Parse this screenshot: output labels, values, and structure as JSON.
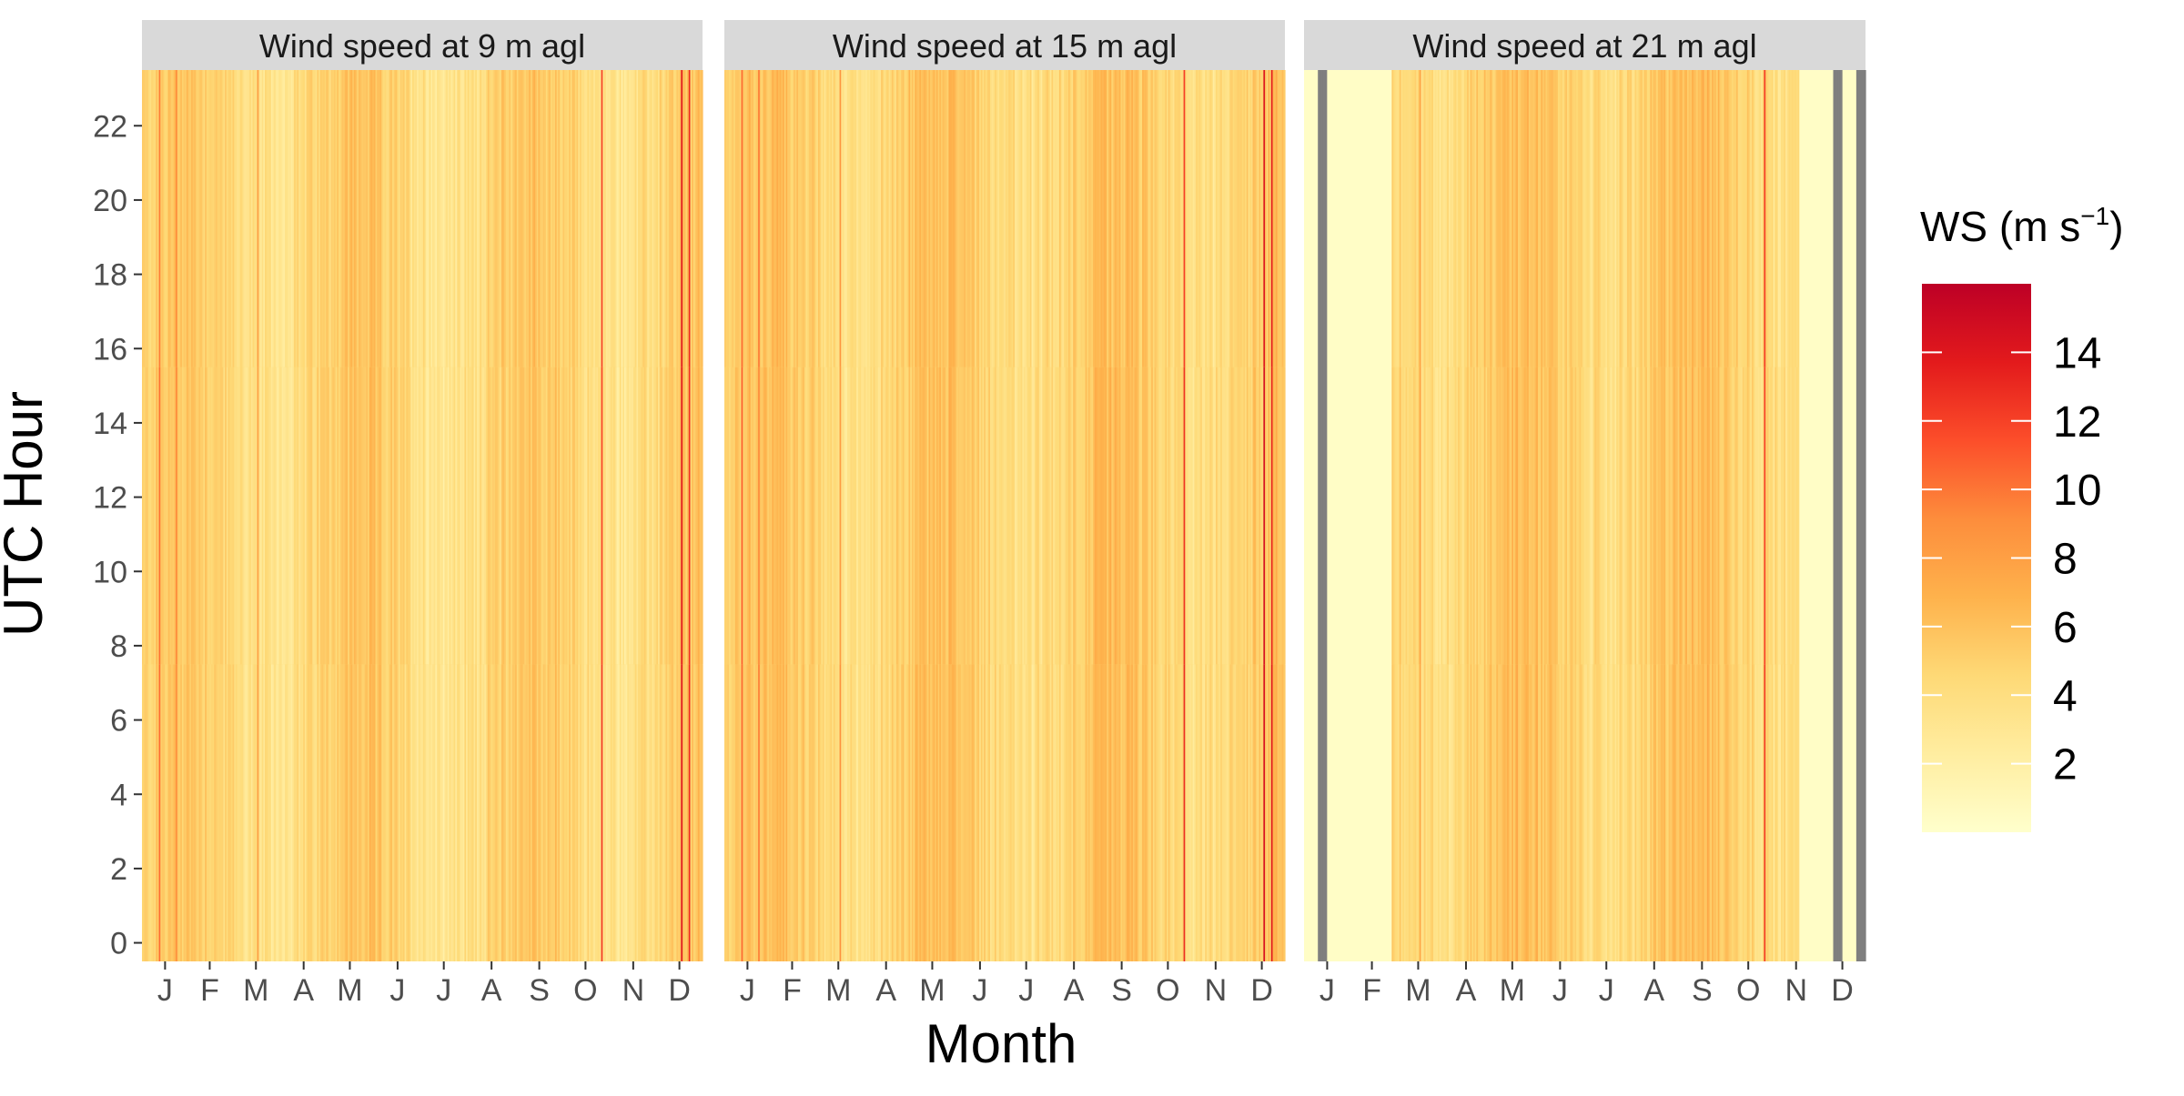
{
  "chart_data": {
    "type": "heatmap",
    "facets": [
      {
        "title": "Wind speed at 9 m agl"
      },
      {
        "title": "Wind speed at 15 m agl"
      },
      {
        "title": "Wind speed at 21 m agl"
      }
    ],
    "xlabel": "Month",
    "ylabel": "UTC Hour",
    "x_tick_labels": [
      "J",
      "F",
      "M",
      "A",
      "M",
      "J",
      "J",
      "A",
      "S",
      "O",
      "N",
      "D"
    ],
    "x_range_day_of_year": [
      1,
      365
    ],
    "y_range_hour": [
      0,
      23
    ],
    "y_tick_labels": [
      "0",
      "2",
      "4",
      "6",
      "8",
      "10",
      "12",
      "14",
      "16",
      "18",
      "20",
      "22"
    ],
    "legend": {
      "title": "WS (m s⁻¹)",
      "title_main": "WS (m s",
      "title_exp": "−1",
      "title_close": ")",
      "placement": "right",
      "tick_labels": [
        "2",
        "4",
        "6",
        "8",
        "10",
        "12",
        "14"
      ],
      "range": [
        0,
        16
      ],
      "palette": [
        "#ffffcc",
        "#ffeda0",
        "#fed976",
        "#feb24c",
        "#fd8d3c",
        "#fc4e2a",
        "#e31a1c",
        "#bd0026"
      ]
    },
    "missing_color": "#7f7f7f",
    "strip_color": "#d9d9d9"
  }
}
